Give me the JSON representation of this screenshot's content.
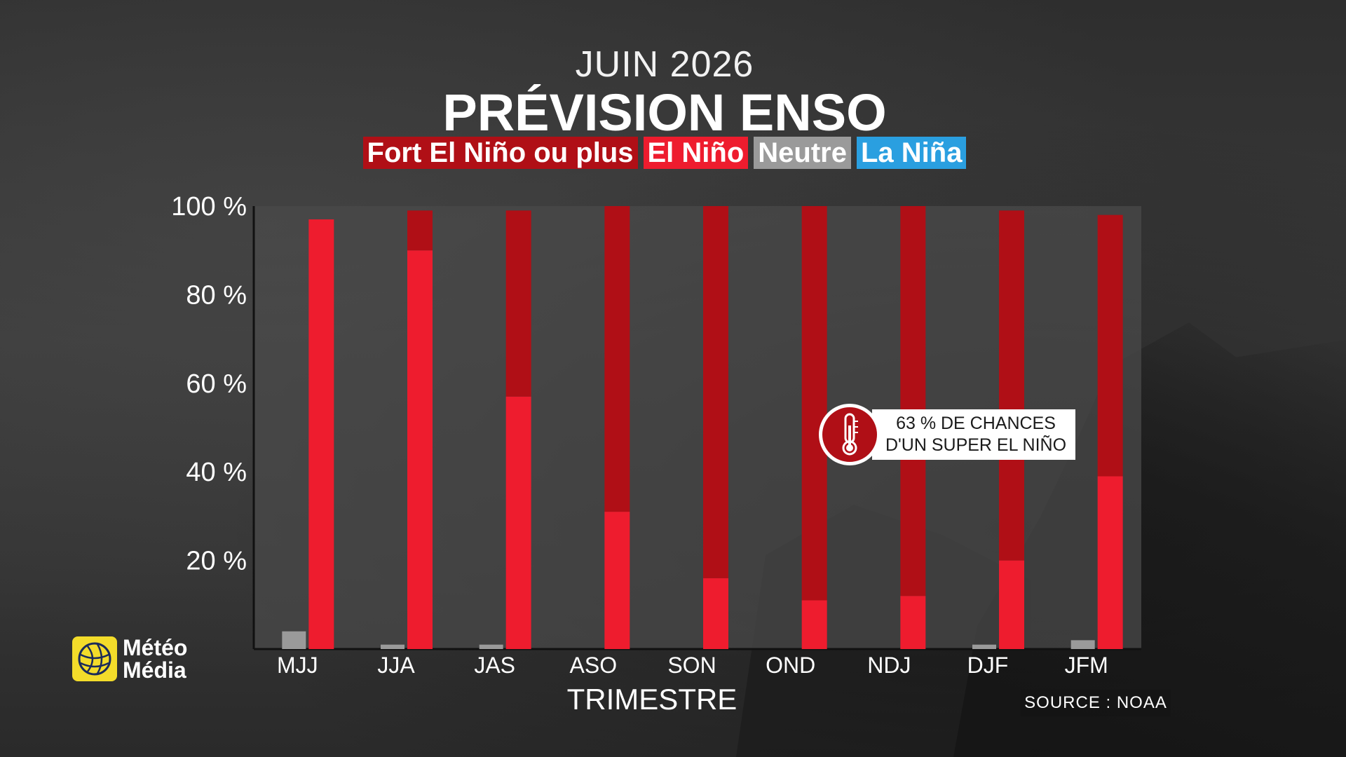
{
  "header": {
    "subtitle": "JUIN 2026",
    "title": "PRÉVISION ENSO"
  },
  "legend": [
    {
      "label": "Fort El Niño ou plus",
      "color": "#b00f16"
    },
    {
      "label": "El Niño",
      "color": "#ee1c2e"
    },
    {
      "label": "Neutre",
      "color": "#9a9a9a"
    },
    {
      "label": "La Niña",
      "color": "#2a9fe0"
    }
  ],
  "callout": {
    "line1": "63 % DE CHANCES",
    "line2": "D'UN SUPER EL NIÑO",
    "icon": "thermometer-icon"
  },
  "logo": {
    "line1": "Météo",
    "line2": "Média"
  },
  "source": "SOURCE : NOAA",
  "colors": {
    "strong_el_nino": "#b00f16",
    "el_nino": "#ee1c2e",
    "neutral": "#9a9a9a",
    "la_nina": "#2a9fe0",
    "plot_bg": "#4a4a4a"
  },
  "chart_data": {
    "type": "bar",
    "title": "PRÉVISION ENSO",
    "xlabel": "TRIMESTRE",
    "ylabel": "",
    "ylim": [
      0,
      100
    ],
    "yticks": [
      "20 %",
      "40 %",
      "60 %",
      "80 %",
      "100 %"
    ],
    "categories": [
      "MJJ",
      "JJA",
      "JAS",
      "ASO",
      "SON",
      "OND",
      "NDJ",
      "DJF",
      "JFM"
    ],
    "series": [
      {
        "name": "Neutre",
        "values": [
          4,
          1,
          1,
          0,
          0,
          0,
          0,
          1,
          2
        ]
      },
      {
        "name": "El Niño",
        "values": [
          97,
          90,
          57,
          31,
          16,
          11,
          12,
          20,
          39
        ]
      },
      {
        "name": "Fort El Niño ou plus",
        "values": [
          0,
          9,
          42,
          69,
          84,
          89,
          88,
          79,
          59
        ]
      }
    ]
  }
}
